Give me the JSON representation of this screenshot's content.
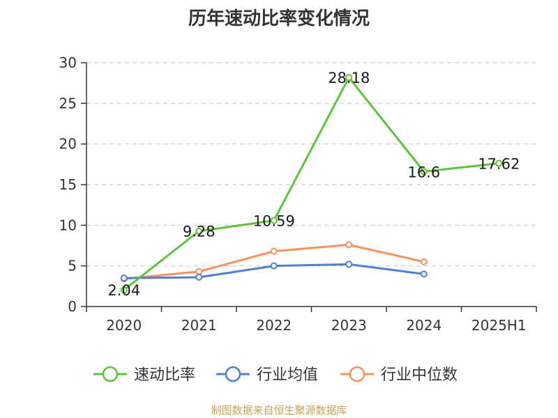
{
  "chart_data": {
    "type": "line",
    "title": "历年速动比率变化情况",
    "categories": [
      "2020",
      "2021",
      "2022",
      "2023",
      "2024",
      "2025H1"
    ],
    "ylim": [
      0,
      30
    ],
    "yticks": [
      0,
      5,
      10,
      15,
      20,
      25,
      30
    ],
    "grid": true,
    "legend_position": "bottom",
    "series": [
      {
        "name": "速动比率",
        "color": "#5cc33a",
        "values": [
          2.04,
          9.28,
          10.59,
          28.18,
          16.6,
          17.62
        ],
        "labels": [
          "2.04",
          "9.28",
          "10.59",
          "28.18",
          "16.6",
          "17.62"
        ]
      },
      {
        "name": "行业均值",
        "color": "#4e7fd8",
        "values": [
          3.5,
          3.6,
          5.0,
          5.2,
          4.0,
          null
        ]
      },
      {
        "name": "行业中位数",
        "color": "#f6915c",
        "values": [
          3.4,
          4.3,
          6.8,
          7.6,
          5.5,
          null
        ]
      }
    ]
  },
  "source": "制图数据来自恒生聚源数据库"
}
